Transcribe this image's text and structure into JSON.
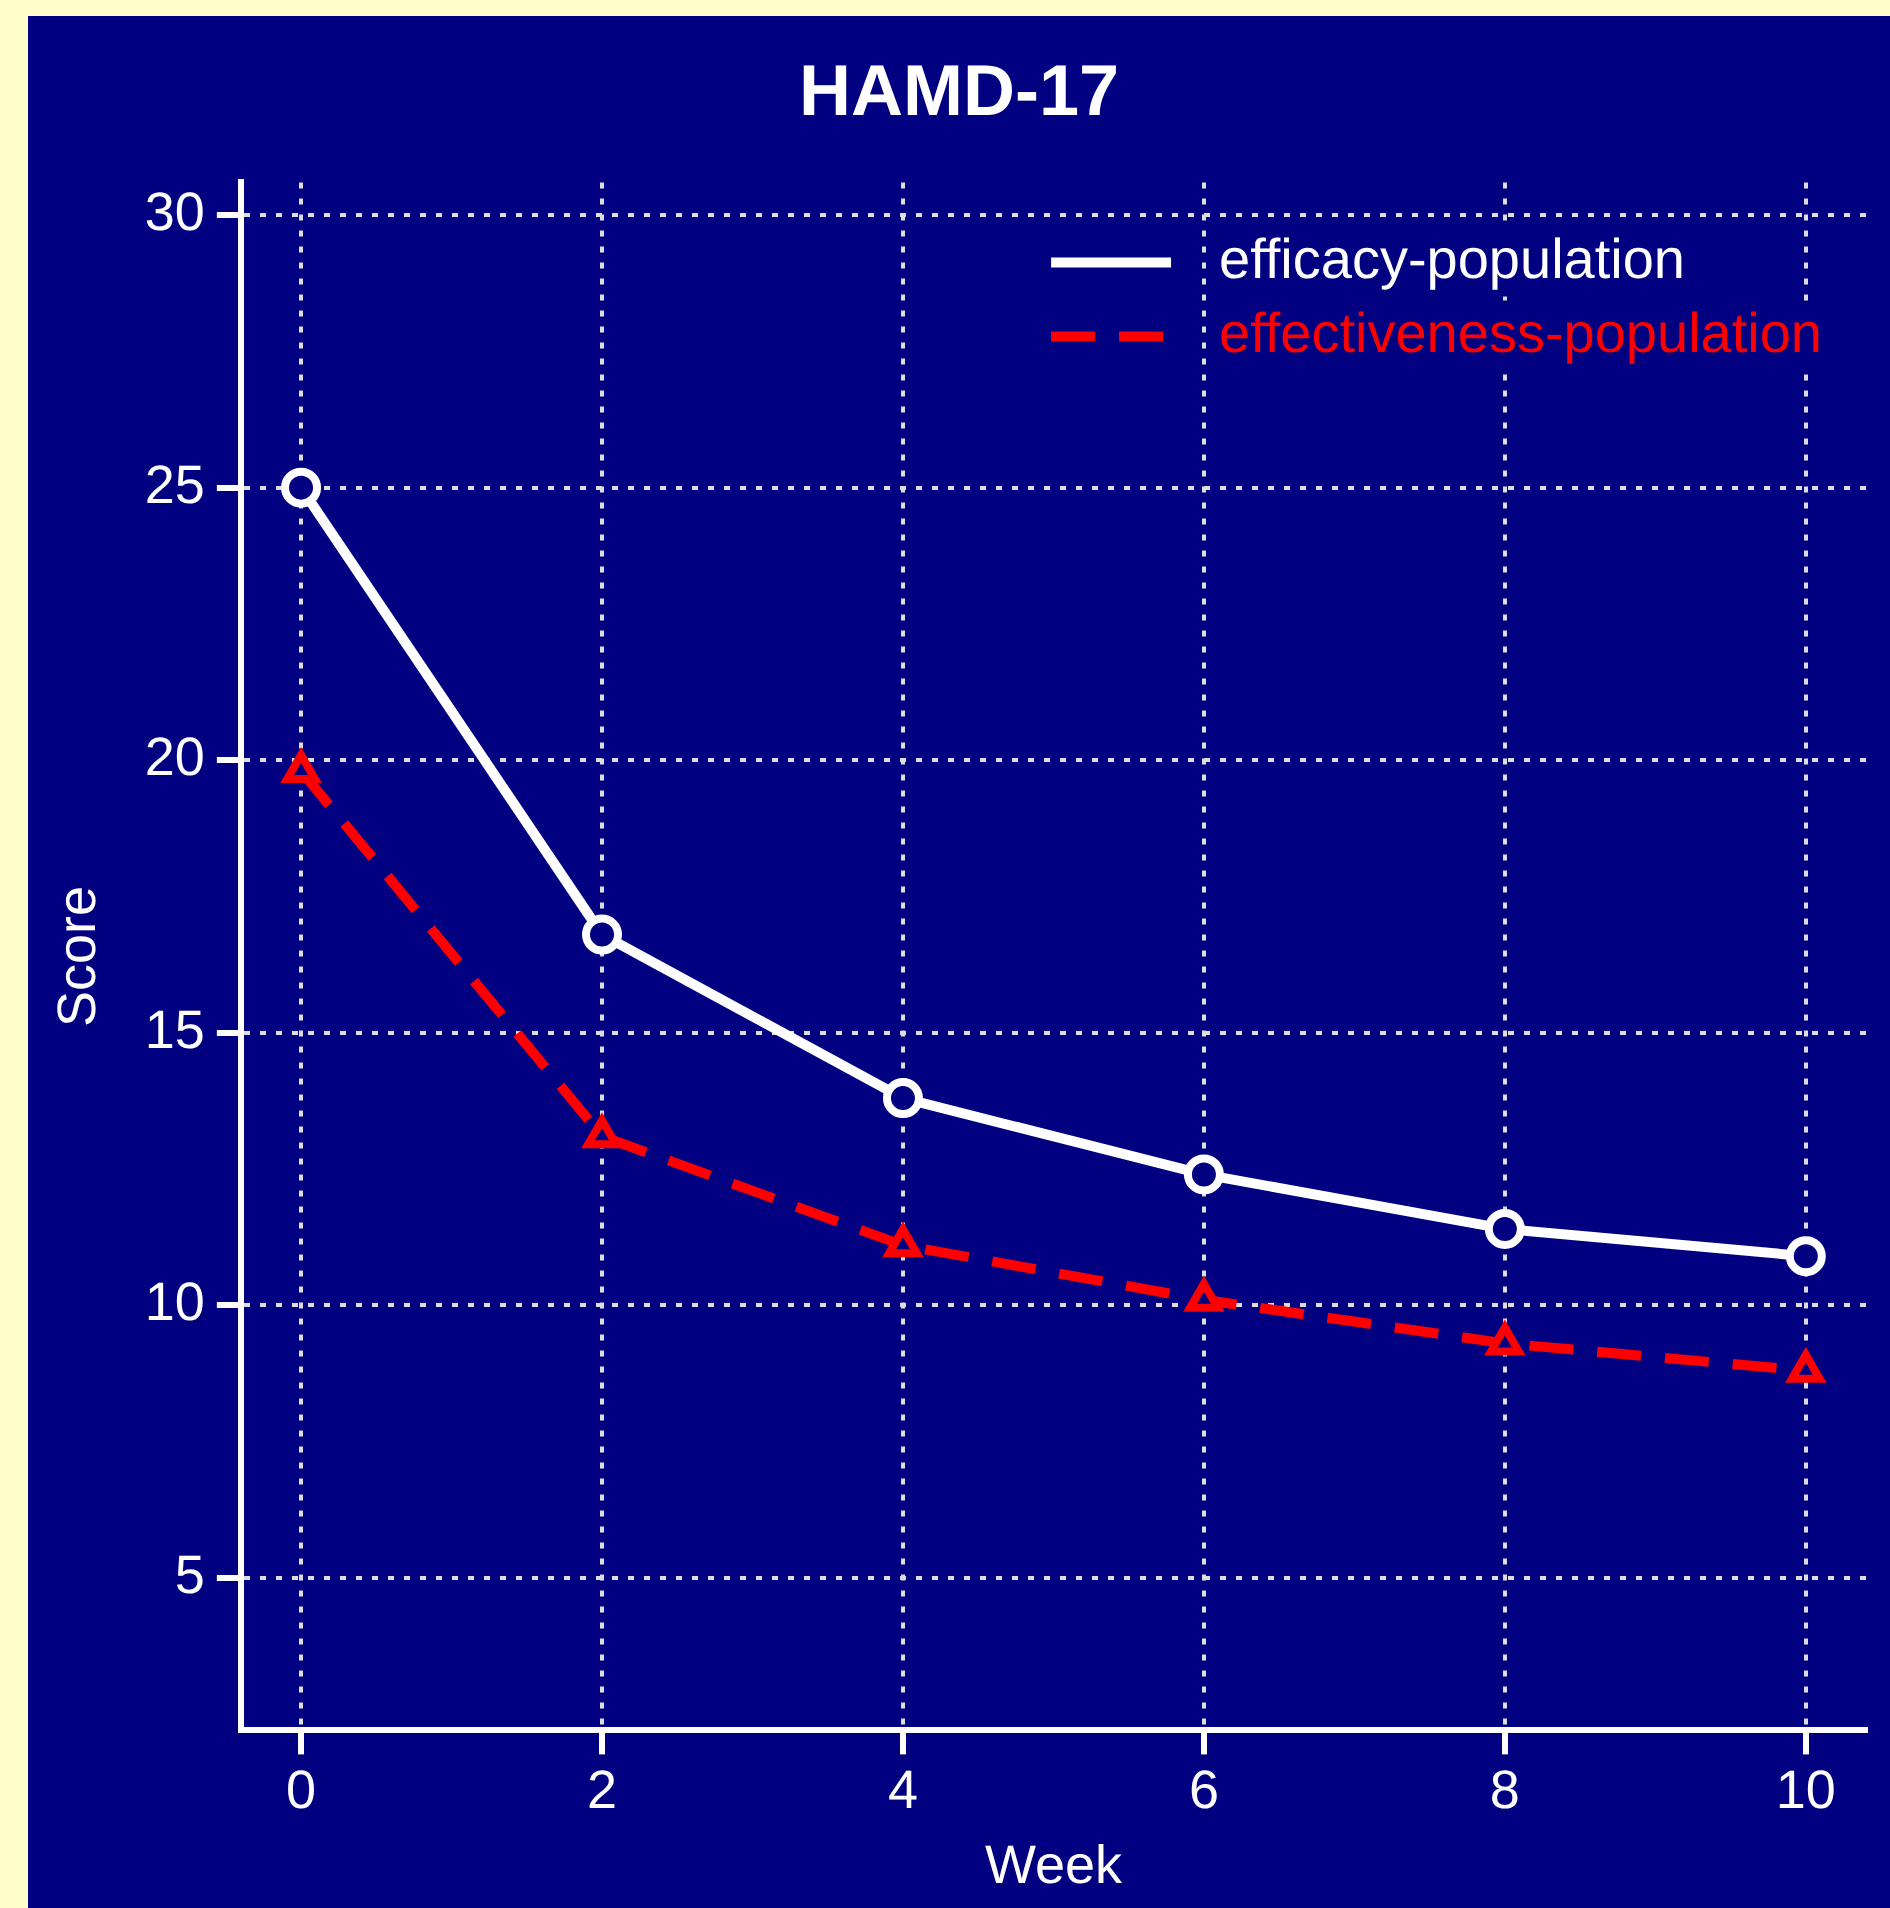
{
  "chart_data": {
    "type": "line",
    "title": "HAMD-17",
    "xlabel": "Week",
    "ylabel": "Score",
    "x": [
      0,
      2,
      4,
      6,
      8,
      10
    ],
    "series": [
      {
        "name": "efficacy-population",
        "color": "#ffffff",
        "marker": "circle",
        "line_style": "solid",
        "values": [
          25,
          16.8,
          13.8,
          12.4,
          11.4,
          10.9
        ]
      },
      {
        "name": "effectiveness-population",
        "color": "#ff0000",
        "marker": "triangle",
        "line_style": "dashed",
        "values": [
          19.8,
          13.1,
          11.1,
          10.1,
          9.3,
          8.8
        ]
      }
    ],
    "xlim": [
      -0.4,
      10.4
    ],
    "xticks": [
      0,
      2,
      4,
      6,
      8,
      10
    ],
    "ylim": [
      2.2,
      30.6
    ],
    "yticks": [
      5,
      10,
      15,
      20,
      25,
      30
    ],
    "grid": true,
    "legend": "top right"
  }
}
